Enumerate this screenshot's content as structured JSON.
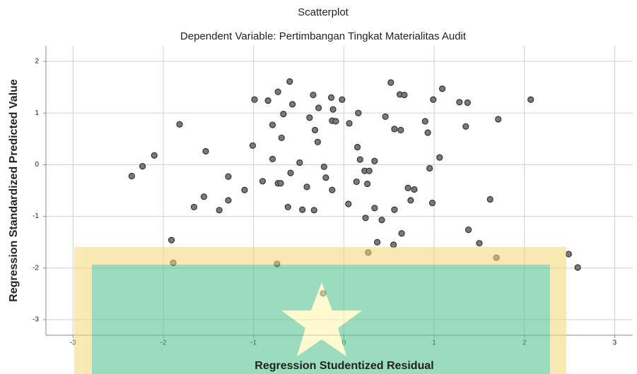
{
  "chart_data": {
    "type": "scatter",
    "title": "Scatterplot",
    "subtitle": "Dependent Variable: Pertimbangan Tingkat Materialitas Audit",
    "x_label": "Regression Studentized Residual",
    "y_label": "Regression Standardized Predicted Value",
    "xlim": [
      -3.3,
      3.2
    ],
    "ylim": [
      -3.3,
      2.3
    ],
    "xticks": [
      -3,
      -2,
      -1,
      0,
      1,
      2,
      3
    ],
    "yticks": [
      -3,
      -2,
      -1,
      0,
      1,
      2
    ],
    "grid": true,
    "color": "#7a7a7a",
    "x": [
      -2.35,
      -2.23,
      -2.1,
      -1.82,
      -1.53,
      -1.66,
      -1.55,
      -1.38,
      -1.28,
      -1.28,
      -1.1,
      -1.01,
      -0.99,
      -0.9,
      -0.84,
      -0.79,
      -0.79,
      -0.73,
      -0.73,
      -0.7,
      -0.69,
      -0.67,
      -0.6,
      -0.59,
      -0.57,
      -0.62,
      -0.49,
      -0.46,
      -0.41,
      -0.38,
      -0.34,
      -0.33,
      -0.32,
      -0.29,
      -0.28,
      -0.22,
      -0.2,
      -0.14,
      -0.13,
      -0.12,
      -0.13,
      -0.09,
      -0.02,
      0.06,
      0.05,
      0.15,
      0.16,
      0.14,
      0.18,
      0.23,
      0.26,
      0.28,
      0.34,
      0.34,
      0.46,
      0.52,
      0.56,
      0.56,
      0.62,
      0.67,
      0.63,
      0.71,
      0.74,
      0.78,
      0.9,
      0.93,
      0.95,
      0.98,
      0.99,
      1.06,
      1.09,
      1.28,
      1.37,
      1.35,
      1.71,
      1.62,
      2.07,
      -1.91,
      -1.89,
      -0.74,
      -0.23,
      0.24,
      0.27,
      0.37,
      0.42,
      0.55,
      0.64,
      1.38,
      1.5,
      1.69,
      2.49,
      2.59
    ],
    "values": [
      -0.22,
      -0.03,
      0.18,
      0.78,
      0.26,
      -0.82,
      -0.62,
      -0.88,
      -0.23,
      -0.69,
      -0.49,
      0.37,
      1.26,
      -0.32,
      1.24,
      0.77,
      0.11,
      1.41,
      -0.36,
      -0.36,
      0.52,
      0.98,
      1.61,
      -0.16,
      1.17,
      -0.82,
      0.04,
      -0.87,
      -0.43,
      0.91,
      1.35,
      -0.88,
      0.67,
      0.44,
      1.1,
      -0.04,
      -0.25,
      1.3,
      0.85,
      1.07,
      -0.49,
      0.84,
      1.26,
      0.8,
      -0.76,
      0.34,
      1.0,
      -0.33,
      0.1,
      -0.12,
      -0.37,
      -0.12,
      0.07,
      -0.84,
      0.93,
      1.59,
      0.69,
      -0.87,
      1.36,
      1.35,
      0.67,
      -0.45,
      -0.69,
      -0.48,
      0.84,
      0.62,
      -0.07,
      -0.74,
      1.26,
      0.14,
      1.47,
      1.21,
      1.2,
      0.74,
      0.88,
      -0.67,
      1.26,
      -1.46,
      -1.9,
      -1.92,
      -2.49,
      -1.03,
      -1.7,
      -1.5,
      -1.07,
      -1.55,
      -1.33,
      -1.26,
      -1.52,
      -1.8,
      -1.73,
      -1.99
    ]
  }
}
